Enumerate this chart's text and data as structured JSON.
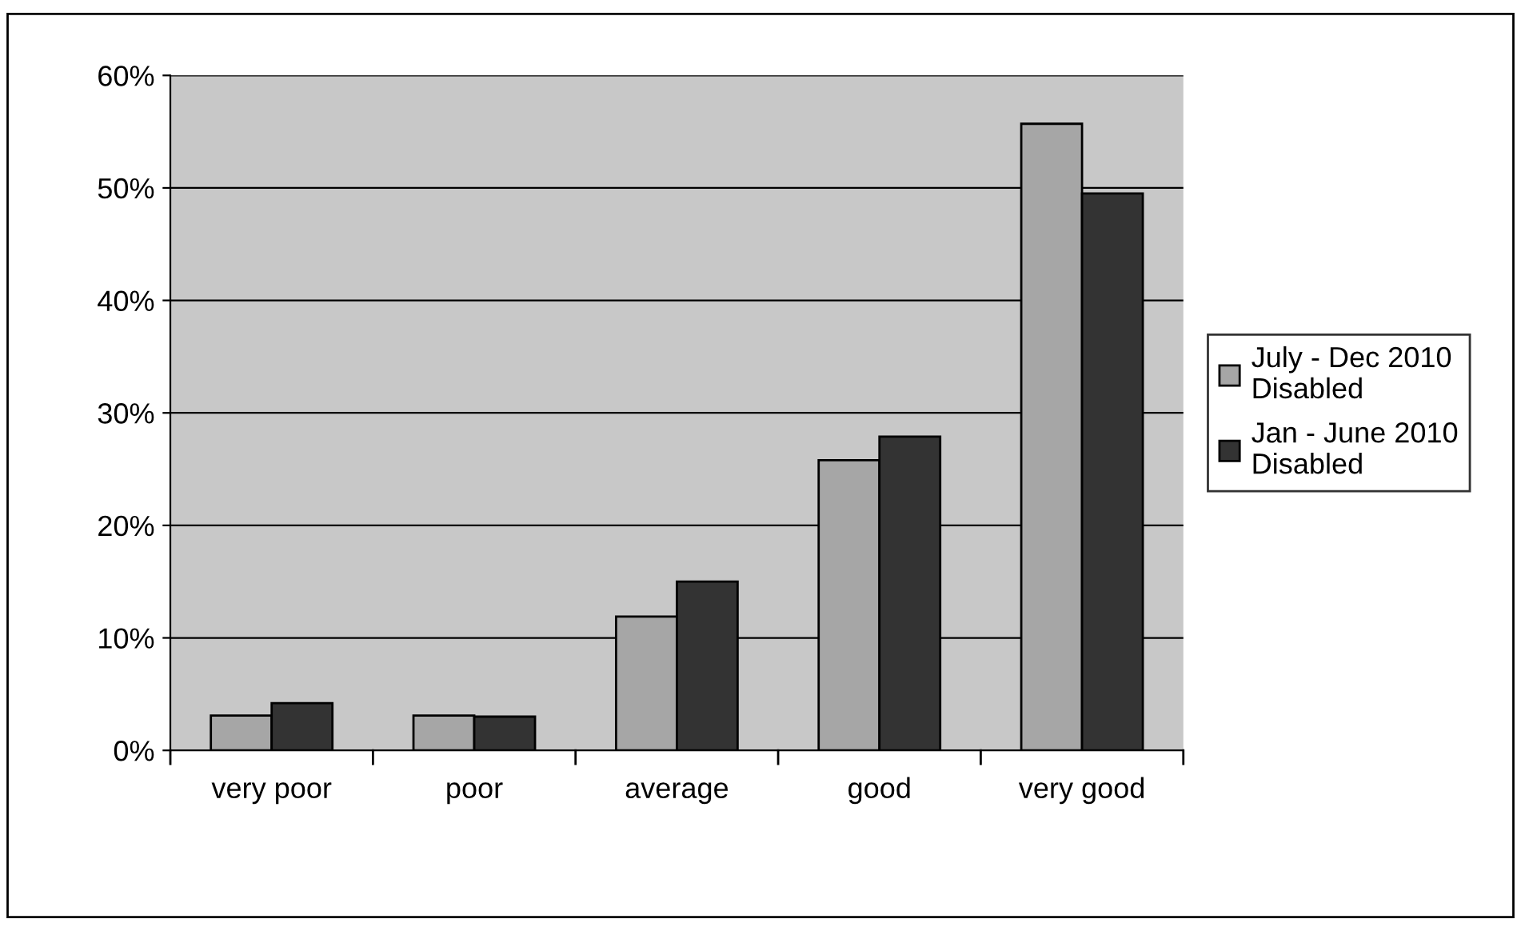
{
  "chart_data": {
    "type": "bar",
    "categories": [
      "very poor",
      "poor",
      "average",
      "good",
      "very good"
    ],
    "series": [
      {
        "name": "July - Dec 2010\nDisabled",
        "color": "#a6a6a6",
        "values": [
          3.1,
          3.1,
          11.9,
          25.8,
          55.7
        ]
      },
      {
        "name": "Jan - June 2010\nDisabled",
        "color": "#333333",
        "values": [
          4.2,
          3.0,
          15.0,
          27.9,
          49.5
        ]
      }
    ],
    "ylim": [
      0,
      60
    ],
    "yticks": [
      {
        "value": 0,
        "label": "0%"
      },
      {
        "value": 10,
        "label": "10%"
      },
      {
        "value": 20,
        "label": "20%"
      },
      {
        "value": 30,
        "label": "30%"
      },
      {
        "value": 40,
        "label": "40%"
      },
      {
        "value": 50,
        "label": "50%"
      },
      {
        "value": 60,
        "label": "60%"
      }
    ],
    "grid": "y",
    "legend": "right"
  }
}
